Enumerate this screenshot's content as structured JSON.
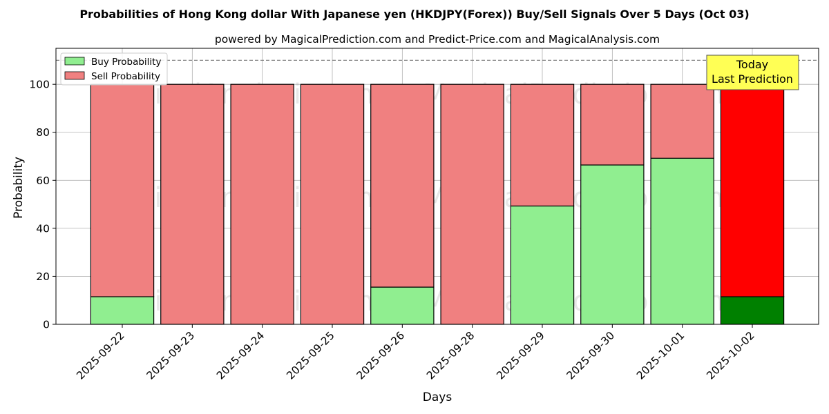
{
  "chart_data": {
    "type": "bar",
    "stacked": true,
    "title": "Probabilities of Hong Kong dollar With Japanese yen (HKDJPY(Forex)) Buy/Sell Signals Over 5 Days (Oct 03)",
    "subtitle": "powered by MagicalPrediction.com and Predict-Price.com and MagicalAnalysis.com",
    "xlabel": "Days",
    "ylabel": "Probability",
    "ylim": [
      0,
      115
    ],
    "yticks": [
      0,
      20,
      40,
      60,
      80,
      100
    ],
    "grid": true,
    "reference_line": 110,
    "legend_position": "top-left",
    "categories": [
      "2025-09-22",
      "2025-09-23",
      "2025-09-24",
      "2025-09-25",
      "2025-09-26",
      "2025-09-28",
      "2025-09-29",
      "2025-09-30",
      "2025-10-01",
      "2025-10-02"
    ],
    "series": [
      {
        "name": "Buy Probability",
        "values": [
          11.5,
          0,
          0,
          0,
          15.5,
          0,
          49.3,
          66.4,
          69.2,
          11.5
        ],
        "color": "#90ee90",
        "highlight_color": "#008000"
      },
      {
        "name": "Sell Probability",
        "values": [
          88.5,
          100,
          100,
          100,
          84.5,
          100,
          50.7,
          33.6,
          30.8,
          88.5
        ],
        "color": "#f08080",
        "highlight_color": "#ff0000"
      }
    ],
    "highlight_index": 9,
    "annotation": {
      "line1": "Today",
      "line2": "Last Prediction",
      "color": "#ffff55"
    },
    "watermarks": [
      "MagicalAnalysis.com",
      "MagicalPrediction.com"
    ]
  }
}
